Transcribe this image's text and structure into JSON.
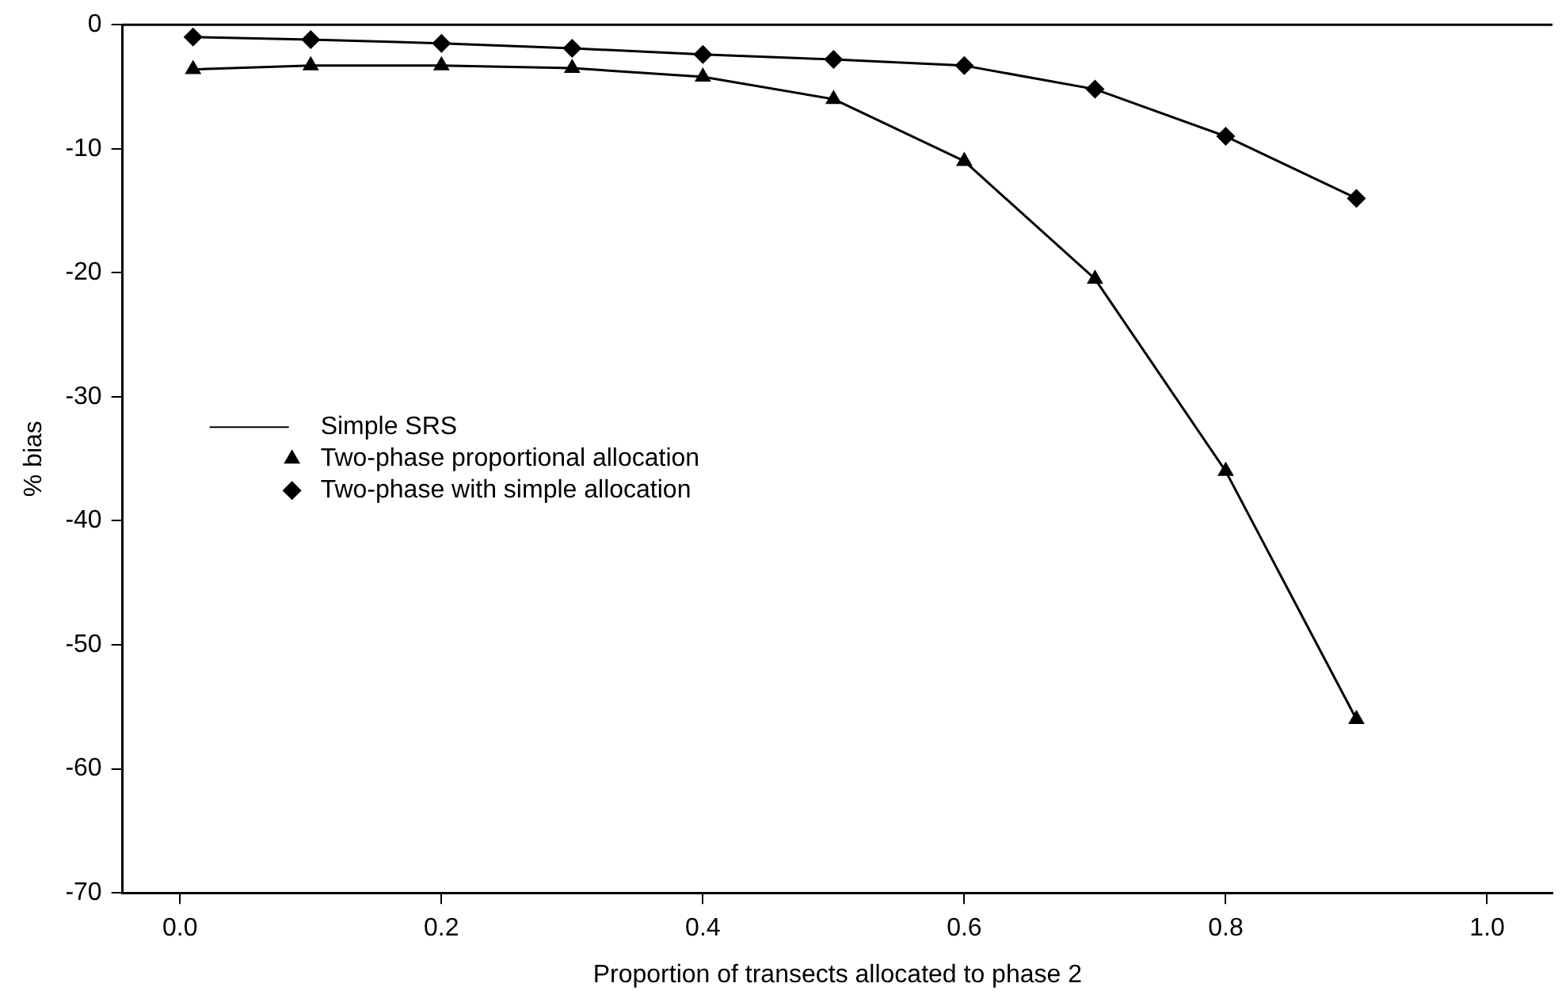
{
  "chart_data": {
    "type": "line",
    "xlabel": "Proportion of transects allocated to phase 2",
    "ylabel": "% bias",
    "xlim": [
      -0.044,
      1.05
    ],
    "xticks": [
      {
        "value": 0,
        "label": "0.0"
      },
      {
        "value": 0.2,
        "label": "0.2"
      },
      {
        "value": 0.4,
        "label": "0.4"
      },
      {
        "value": 0.6,
        "label": "0.6"
      },
      {
        "value": 0.8,
        "label": "0.8"
      },
      {
        "value": 1,
        "label": "1.0"
      }
    ],
    "ylim": [
      -70,
      0
    ],
    "yticks": [
      -70,
      -60,
      -50,
      -40,
      -30,
      -20,
      -10,
      0
    ],
    "grid": false,
    "legend": "left",
    "line_style": "solid",
    "series": [
      {
        "name": "Simple SRS",
        "color": "#000000",
        "marker": "none",
        "x": [
          -0.044,
          1.05
        ],
        "values": [
          0,
          0
        ]
      },
      {
        "name": "Two-phase proportional allocation",
        "color": "#000000",
        "marker": "triangle",
        "x": [
          0.01,
          0.1,
          0.2,
          0.3,
          0.4,
          0.5,
          0.6,
          0.7,
          0.8,
          0.9
        ],
        "values": [
          -3.6,
          -3.3,
          -3.3,
          -3.5,
          -4.2,
          -6,
          -11,
          -20.5,
          -36,
          -56
        ]
      },
      {
        "name": "Two-phase with simple allocation",
        "color": "#000000",
        "marker": "diamond",
        "x": [
          0.01,
          0.1,
          0.2,
          0.3,
          0.4,
          0.5,
          0.6,
          0.7,
          0.8,
          0.9
        ],
        "values": [
          -1,
          -1.2,
          -1.5,
          -1.9,
          -2.4,
          -2.8,
          -3.3,
          -5.2,
          -9,
          -14
        ]
      }
    ]
  }
}
